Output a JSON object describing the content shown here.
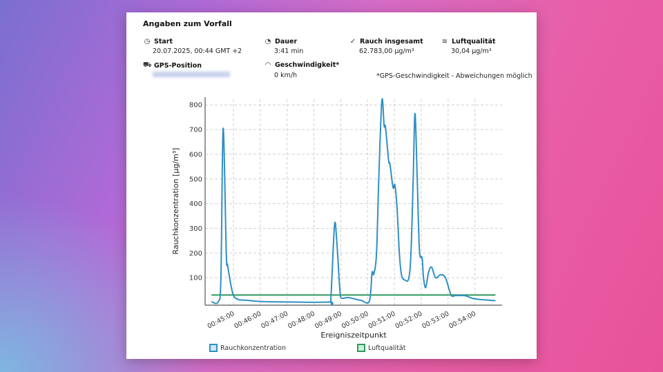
{
  "header": {
    "title": "Angaben zum Vorfall"
  },
  "fields": [
    {
      "icon": "clock-icon",
      "label": "Start",
      "value": "20.07.2025, 00:44 GMT +2"
    },
    {
      "icon": "pie-timer-icon",
      "label": "Dauer",
      "value": "3:41 min"
    },
    {
      "icon": "smoke-check-icon",
      "label": "Rauch insgesamt",
      "value": "62.783,00 µg/m³"
    },
    {
      "icon": "air-waves-icon",
      "label": "Luftqualität",
      "value": "30,04 µg/m³"
    },
    {
      "icon": "car-location-icon",
      "label": "GPS-Position",
      "value": ""
    },
    {
      "icon": "speedometer-icon",
      "label": "Geschwindigkeit*",
      "value": "0 km/h"
    }
  ],
  "note": "*GPS-Geschwindigkeit - Abweichungen möglich",
  "colors": {
    "smoke": "#2f8fc4",
    "air": "#2e9a5a",
    "grid": "#cfcfcf"
  },
  "chart_data": {
    "type": "line",
    "xlabel": "Ereigniszeitpunkt",
    "ylabel": "Rauchkonzentration [µg/m³]",
    "x_unit": "seconds after 00:44:00",
    "ylim": [
      0,
      820
    ],
    "yticks": [
      100,
      200,
      300,
      400,
      500,
      600,
      700,
      800
    ],
    "xticks": [
      {
        "s": 60,
        "label": "00:45:00"
      },
      {
        "s": 120,
        "label": "00:46:00"
      },
      {
        "s": 180,
        "label": "00:47:00"
      },
      {
        "s": 240,
        "label": "00:48:00"
      },
      {
        "s": 300,
        "label": "00:49:00"
      },
      {
        "s": 360,
        "label": "00:50:00"
      },
      {
        "s": 420,
        "label": "00:51:00"
      },
      {
        "s": 480,
        "label": "00:52:00"
      },
      {
        "s": 540,
        "label": "00:53:00"
      },
      {
        "s": 600,
        "label": "00:54:00"
      }
    ],
    "legend": "bottom",
    "grid": true,
    "series": [
      {
        "name": "Rauchkonzentration",
        "color": "#2f8fc4",
        "x": [
          11,
          26,
          32,
          37,
          44,
          47,
          58,
          69,
          89,
          120,
          177,
          274,
          278,
          286,
          291,
          298,
          302,
          316,
          331,
          346,
          364,
          370,
          374,
          380,
          385,
          392,
          397,
          400,
          407,
          410,
          417,
          421,
          426,
          431,
          436,
          444,
          452,
          457,
          462,
          466,
          471,
          476,
          482,
          485,
          490,
          496,
          503,
          512,
          523,
          534,
          547,
          557,
          578,
          598,
          624,
          646
        ],
        "values": [
          3,
          3,
          100,
          705,
          200,
          150,
          40,
          13,
          9,
          4,
          2,
          2,
          20,
          312,
          250,
          50,
          18,
          20,
          14,
          8,
          5,
          120,
          115,
          200,
          500,
          818,
          715,
          710,
          575,
          560,
          465,
          475,
          380,
          200,
          110,
          90,
          97,
          200,
          500,
          765,
          500,
          210,
          180,
          100,
          60,
          120,
          143,
          100,
          112,
          100,
          30,
          28,
          27,
          15,
          10,
          7
        ]
      },
      {
        "name": "Luftqualität",
        "color": "#2e9a5a",
        "x": [
          11,
          646
        ],
        "values": [
          30.04,
          30.04
        ]
      }
    ]
  }
}
